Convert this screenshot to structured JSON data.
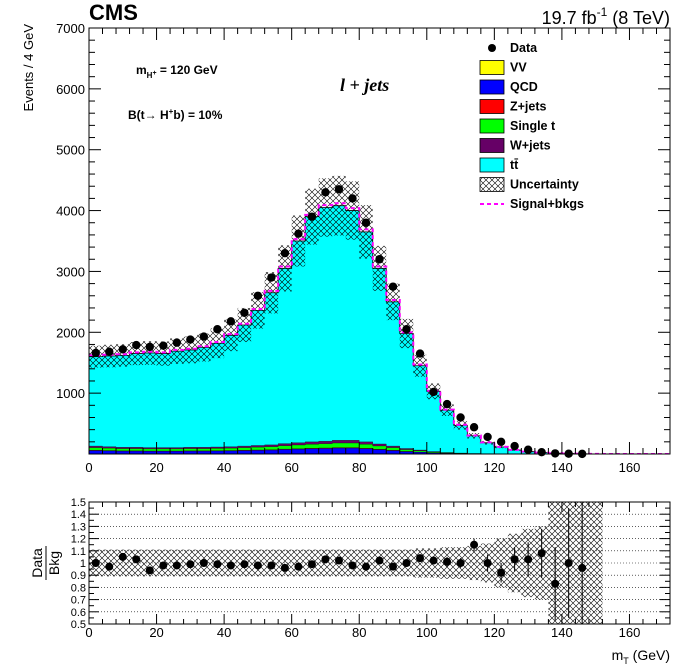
{
  "header": {
    "experiment": "CMS",
    "lumi_main": "19.7 fb",
    "lumi_exp": "-1",
    "lumi_energy": " (8 TeV)"
  },
  "annotations": {
    "channel": "l + jets",
    "mass_label": "m",
    "mass_sub": "H",
    "mass_sup": "+",
    "mass_value": " = 120 GeV",
    "br_prefix": "B(t",
    "br_arrow": "→",
    "br_particle": " H",
    "br_sup": "+",
    "br_suffix": "b) = 10%"
  },
  "axes": {
    "top_ylabel": "Events / 4 GeV",
    "bottom_ylabel_num": "Data",
    "bottom_ylabel_den": "Bkg",
    "xlabel_main": "m",
    "xlabel_sub": "T",
    "xlabel_unit": " (GeV)"
  },
  "colors": {
    "ttbar": "#00ffff",
    "wjets": "#660066",
    "singlet": "#00ff00",
    "zjets": "#ff0000",
    "qcd": "#0000ff",
    "vv": "#ffff00",
    "signal": "#ff00ff"
  },
  "chart_data": {
    "type": "bar",
    "title": "",
    "xlabel": "m_T (GeV)",
    "ylabel": "Events / 4 GeV",
    "xlim": [
      0,
      172
    ],
    "ylim": [
      0,
      7000
    ],
    "bin_width": 4,
    "x_ticks": [
      0,
      20,
      40,
      60,
      80,
      100,
      120,
      140,
      160
    ],
    "y_ticks": [
      1000,
      2000,
      3000,
      4000,
      5000,
      6000,
      7000
    ],
    "legend_position": "top-right",
    "legend": [
      {
        "label": "Data",
        "kind": "marker"
      },
      {
        "label": "VV",
        "kind": "fill",
        "color": "#ffff00"
      },
      {
        "label": "QCD",
        "kind": "fill",
        "color": "#0000ff"
      },
      {
        "label": "Z+jets",
        "kind": "fill",
        "color": "#ff0000"
      },
      {
        "label": "Single t",
        "kind": "fill",
        "color": "#00ff00"
      },
      {
        "label": "W+jets",
        "kind": "fill",
        "color": "#660066"
      },
      {
        "label": "tt̄",
        "kind": "fill",
        "color": "#00ffff"
      },
      {
        "label": "Uncertainty",
        "kind": "hatch"
      },
      {
        "label": "Signal+bkgs",
        "kind": "dashed",
        "color": "#ff00ff"
      }
    ],
    "bin_edges": [
      0,
      4,
      8,
      12,
      16,
      20,
      24,
      28,
      32,
      36,
      40,
      44,
      48,
      52,
      56,
      60,
      64,
      68,
      72,
      76,
      80,
      84,
      88,
      92,
      96,
      100,
      104,
      108,
      112,
      116,
      120,
      124,
      128,
      132,
      136,
      140,
      144,
      148,
      152,
      156,
      160,
      164,
      168,
      172
    ],
    "total_background": [
      1600,
      1610,
      1620,
      1650,
      1660,
      1650,
      1690,
      1710,
      1750,
      1820,
      1950,
      2120,
      2360,
      2650,
      3050,
      3500,
      3900,
      4050,
      4080,
      4000,
      3650,
      3050,
      2500,
      1980,
      1450,
      1030,
      720,
      470,
      300,
      185,
      115,
      65,
      38,
      22,
      13,
      8,
      4,
      2,
      1,
      0,
      0,
      0,
      0
    ],
    "uncertainty_band": [
      180,
      185,
      185,
      190,
      195,
      200,
      210,
      220,
      230,
      245,
      260,
      280,
      300,
      340,
      380,
      420,
      460,
      480,
      490,
      480,
      440,
      370,
      300,
      240,
      180,
      130,
      95,
      70,
      45,
      30,
      20,
      12,
      8,
      5,
      3,
      2,
      1,
      0,
      0,
      0,
      0,
      0,
      0
    ],
    "small_backgrounds_total": [
      130,
      120,
      110,
      110,
      105,
      105,
      105,
      110,
      110,
      115,
      120,
      130,
      140,
      150,
      170,
      185,
      200,
      210,
      225,
      225,
      200,
      165,
      130,
      90,
      65,
      40,
      25,
      15,
      8,
      5,
      3,
      2,
      1,
      1,
      0,
      0,
      0,
      0,
      0,
      0,
      0,
      0,
      0
    ],
    "series": [
      {
        "name": "Data",
        "x": [
          2,
          6,
          10,
          14,
          18,
          22,
          26,
          30,
          34,
          38,
          42,
          46,
          50,
          54,
          58,
          62,
          66,
          70,
          74,
          78,
          82,
          86,
          90,
          94,
          98,
          102,
          106,
          110,
          114,
          118,
          122,
          126,
          130,
          134,
          138,
          142,
          146
        ],
        "values": [
          1660,
          1680,
          1720,
          1790,
          1760,
          1780,
          1830,
          1880,
          1930,
          2050,
          2180,
          2320,
          2600,
          2900,
          3300,
          3620,
          3900,
          4300,
          4350,
          4200,
          3800,
          3200,
          2750,
          2050,
          1650,
          1020,
          820,
          600,
          440,
          280,
          200,
          130,
          70,
          30,
          10,
          5,
          2
        ]
      },
      {
        "name": "Signal+bkgs",
        "values": [
          1620,
          1630,
          1640,
          1670,
          1680,
          1670,
          1710,
          1730,
          1770,
          1840,
          1970,
          2140,
          2380,
          2680,
          3080,
          3530,
          3930,
          4090,
          4120,
          4040,
          3690,
          3080,
          2530,
          2000,
          1470,
          1040,
          730,
          480,
          305,
          190,
          118,
          67,
          39,
          23,
          14,
          8,
          4,
          2,
          1,
          0,
          0,
          0,
          0
        ]
      }
    ],
    "ratio": {
      "ylabel": "Data/Bkg",
      "ylim": [
        0.5,
        1.5
      ],
      "y_ticks": [
        0.5,
        0.6,
        0.7,
        0.8,
        0.9,
        1,
        1.1,
        1.2,
        1.3,
        1.4,
        1.5
      ],
      "x": [
        2,
        6,
        10,
        14,
        18,
        22,
        26,
        30,
        34,
        38,
        42,
        46,
        50,
        54,
        58,
        62,
        66,
        70,
        74,
        78,
        82,
        86,
        90,
        94,
        98,
        102,
        106,
        110,
        114,
        118,
        122,
        126,
        130,
        134,
        138,
        142,
        146
      ],
      "values": [
        1.0,
        0.97,
        1.05,
        1.03,
        0.94,
        0.98,
        0.98,
        0.99,
        1.0,
        0.99,
        0.98,
        0.99,
        0.98,
        0.98,
        0.96,
        0.97,
        0.99,
        1.03,
        1.02,
        0.98,
        0.97,
        1.02,
        0.97,
        1.0,
        1.04,
        1.02,
        1.01,
        1.0,
        1.15,
        1.0,
        0.92,
        1.03,
        1.03,
        1.08,
        0.83,
        1.0,
        0.96
      ],
      "errors": [
        0.03,
        0.03,
        0.03,
        0.03,
        0.03,
        0.03,
        0.03,
        0.03,
        0.03,
        0.03,
        0.03,
        0.03,
        0.03,
        0.02,
        0.02,
        0.02,
        0.02,
        0.02,
        0.02,
        0.02,
        0.02,
        0.02,
        0.02,
        0.02,
        0.03,
        0.03,
        0.04,
        0.04,
        0.05,
        0.07,
        0.08,
        0.1,
        0.14,
        0.2,
        0.3,
        0.45,
        0.55
      ],
      "band": [
        0.11,
        0.11,
        0.11,
        0.11,
        0.11,
        0.11,
        0.11,
        0.11,
        0.11,
        0.11,
        0.11,
        0.11,
        0.11,
        0.11,
        0.11,
        0.11,
        0.11,
        0.11,
        0.11,
        0.11,
        0.11,
        0.11,
        0.11,
        0.11,
        0.12,
        0.12,
        0.13,
        0.13,
        0.14,
        0.16,
        0.2,
        0.24,
        0.28,
        0.3,
        0.5,
        0.5,
        0.5,
        0.5,
        0,
        0,
        0,
        0,
        0
      ]
    }
  }
}
